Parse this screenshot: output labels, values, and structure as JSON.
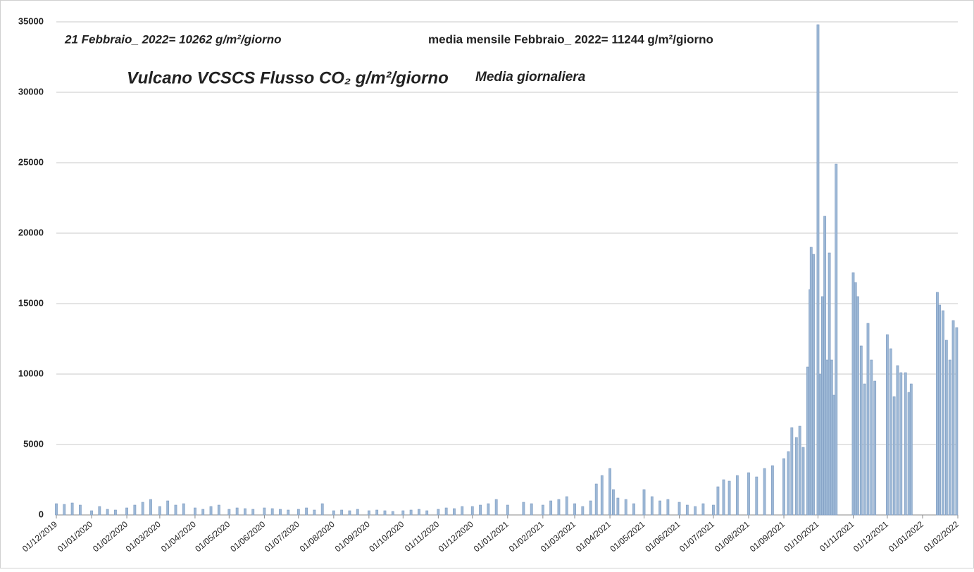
{
  "chart_data": {
    "type": "bar",
    "annotations": [
      "21 Febbraio_ 2022= 10262 g/m²/giorno",
      "media mensile Febbraio_ 2022= 11244 g/m²/giorno"
    ],
    "title": "Vulcano VCSCS Flusso CO₂ g/m²/giorno",
    "subtitle": "Media giornaliera",
    "color": "#9db8d6",
    "grid": true,
    "ylim": [
      0,
      35000
    ],
    "yticks": [
      0,
      5000,
      10000,
      15000,
      20000,
      25000,
      30000,
      35000
    ],
    "xlim": [
      "01/12/2019",
      "01/02/2022"
    ],
    "xticks": [
      "01/12/2019",
      "01/01/2020",
      "01/02/2020",
      "01/03/2020",
      "01/04/2020",
      "01/05/2020",
      "01/06/2020",
      "01/07/2020",
      "01/08/2020",
      "01/09/2020",
      "01/10/2020",
      "01/11/2020",
      "01/12/2020",
      "01/01/2021",
      "01/02/2021",
      "01/03/2021",
      "01/04/2021",
      "01/05/2021",
      "01/06/2021",
      "01/07/2021",
      "01/08/2021",
      "01/09/2021",
      "01/10/2021",
      "01/11/2021",
      "01/12/2021",
      "01/01/2022",
      "01/02/2022"
    ],
    "x": [
      "01/12/2019",
      "08/12/2019",
      "15/12/2019",
      "22/12/2019",
      "01/01/2020",
      "08/01/2020",
      "15/01/2020",
      "22/01/2020",
      "01/02/2020",
      "08/02/2020",
      "15/02/2020",
      "22/02/2020",
      "01/03/2020",
      "08/03/2020",
      "15/03/2020",
      "22/03/2020",
      "01/04/2020",
      "08/04/2020",
      "15/04/2020",
      "22/04/2020",
      "01/05/2020",
      "08/05/2020",
      "15/05/2020",
      "22/05/2020",
      "01/06/2020",
      "08/06/2020",
      "15/06/2020",
      "22/06/2020",
      "01/07/2020",
      "08/07/2020",
      "15/07/2020",
      "22/07/2020",
      "01/08/2020",
      "08/08/2020",
      "15/08/2020",
      "22/08/2020",
      "01/09/2020",
      "08/09/2020",
      "15/09/2020",
      "22/09/2020",
      "01/10/2020",
      "08/10/2020",
      "15/10/2020",
      "22/10/2020",
      "01/11/2020",
      "08/11/2020",
      "15/11/2020",
      "22/11/2020",
      "01/12/2020",
      "08/12/2020",
      "15/12/2020",
      "22/12/2020",
      "01/01/2021",
      "15/01/2021",
      "22/01/2021",
      "01/02/2021",
      "08/02/2021",
      "15/02/2021",
      "22/02/2021",
      "01/03/2021",
      "08/03/2021",
      "15/03/2021",
      "20/03/2021",
      "25/03/2021",
      "01/04/2021",
      "04/04/2021",
      "08/04/2021",
      "15/04/2021",
      "22/04/2021",
      "01/05/2021",
      "08/05/2021",
      "15/05/2021",
      "22/05/2021",
      "01/06/2021",
      "08/06/2021",
      "15/06/2021",
      "22/06/2021",
      "01/07/2021",
      "05/07/2021",
      "10/07/2021",
      "15/07/2021",
      "22/07/2021",
      "01/08/2021",
      "08/08/2021",
      "15/08/2021",
      "22/08/2021",
      "01/09/2021",
      "05/09/2021",
      "08/09/2021",
      "12/09/2021",
      "15/09/2021",
      "18/09/2021",
      "22/09/2021",
      "24/09/2021",
      "25/09/2021",
      "27/09/2021",
      "01/10/2021",
      "03/10/2021",
      "05/10/2021",
      "07/10/2021",
      "09/10/2021",
      "11/10/2021",
      "13/10/2021",
      "15/10/2021",
      "17/10/2021",
      "01/11/2021",
      "03/11/2021",
      "05/11/2021",
      "08/11/2021",
      "11/11/2021",
      "14/11/2021",
      "17/11/2021",
      "20/11/2021",
      "01/12/2021",
      "04/12/2021",
      "07/12/2021",
      "10/12/2021",
      "13/12/2021",
      "17/12/2021",
      "20/12/2021",
      "22/12/2021",
      "14/01/2022",
      "16/01/2022",
      "19/01/2022",
      "22/01/2022",
      "25/01/2022",
      "28/01/2022",
      "31/01/2022"
    ],
    "values": [
      800,
      750,
      850,
      700,
      300,
      600,
      400,
      350,
      500,
      700,
      900,
      1100,
      600,
      1000,
      700,
      800,
      500,
      400,
      600,
      700,
      400,
      500,
      450,
      400,
      500,
      450,
      400,
      350,
      400,
      500,
      350,
      800,
      300,
      350,
      300,
      400,
      300,
      350,
      300,
      250,
      300,
      350,
      400,
      300,
      400,
      500,
      450,
      600,
      600,
      700,
      800,
      1100,
      700,
      900,
      800,
      700,
      1000,
      1100,
      1300,
      800,
      600,
      1000,
      2200,
      2800,
      3300,
      1800,
      1200,
      1100,
      800,
      1800,
      1300,
      1000,
      1100,
      900,
      700,
      600,
      800,
      700,
      2000,
      2500,
      2400,
      2800,
      3000,
      2700,
      3300,
      3500,
      4000,
      4500,
      6200,
      5500,
      6300,
      4800,
      10500,
      16000,
      19000,
      18500,
      34800,
      10000,
      15500,
      21200,
      11000,
      18600,
      11000,
      8500,
      24900,
      17200,
      16500,
      15500,
      12000,
      9300,
      13600,
      11000,
      9500,
      12800,
      11800,
      8400,
      10600,
      10100,
      10100,
      8700,
      9300,
      15800,
      14900,
      14500,
      12400,
      11000,
      13800,
      13300
    ]
  }
}
